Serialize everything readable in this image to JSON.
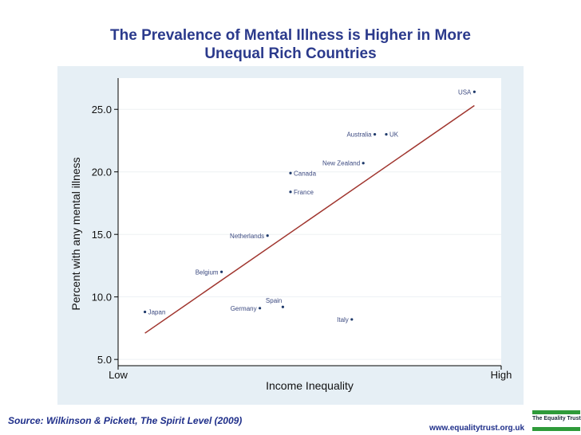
{
  "title_lines": [
    "The Prevalence of Mental Illness is Higher in More",
    "Unequal Rich Countries"
  ],
  "footer": {
    "source": "Source: Wilkinson & Pickett, The Spirit Level (2009)",
    "website": "www.equalitytrust.org.uk",
    "logo_text": "The Equality Trust"
  },
  "colors": {
    "title": "#2b3a8c",
    "panel": "#e6eff5",
    "trend_line": "#a0352e",
    "point": "#1f3a6b",
    "label": "#3c4a80"
  },
  "chart_data": {
    "type": "scatter",
    "xlabel": "Income Inequality",
    "ylabel": "Percent with any mental illness",
    "xlim": [
      0,
      100
    ],
    "ylim": [
      4.5,
      27.5
    ],
    "x_tick_labels": [
      {
        "x": 0,
        "label": "Low"
      },
      {
        "x": 100,
        "label": "High"
      }
    ],
    "y_ticks": [
      5.0,
      10.0,
      15.0,
      20.0,
      25.0
    ],
    "y_tick_labels": [
      "5.0",
      "10.0",
      "15.0",
      "20.0",
      "25.0"
    ],
    "points": [
      {
        "name": "Japan",
        "x": 7,
        "y": 8.8
      },
      {
        "name": "Germany",
        "x": 37,
        "y": 9.1
      },
      {
        "name": "Spain",
        "x": 43,
        "y": 9.2
      },
      {
        "name": "Belgium",
        "x": 27,
        "y": 12.0
      },
      {
        "name": "Netherlands",
        "x": 39,
        "y": 14.9
      },
      {
        "name": "France",
        "x": 45,
        "y": 18.4
      },
      {
        "name": "Canada",
        "x": 45,
        "y": 19.9
      },
      {
        "name": "Italy",
        "x": 61,
        "y": 8.2
      },
      {
        "name": "New Zealand",
        "x": 64,
        "y": 20.7
      },
      {
        "name": "Australia",
        "x": 67,
        "y": 23.0
      },
      {
        "name": "UK",
        "x": 70,
        "y": 23.0
      },
      {
        "name": "USA",
        "x": 93,
        "y": 26.4
      }
    ],
    "trend_line": {
      "x": [
        7,
        93
      ],
      "y": [
        7.1,
        25.3
      ]
    }
  }
}
